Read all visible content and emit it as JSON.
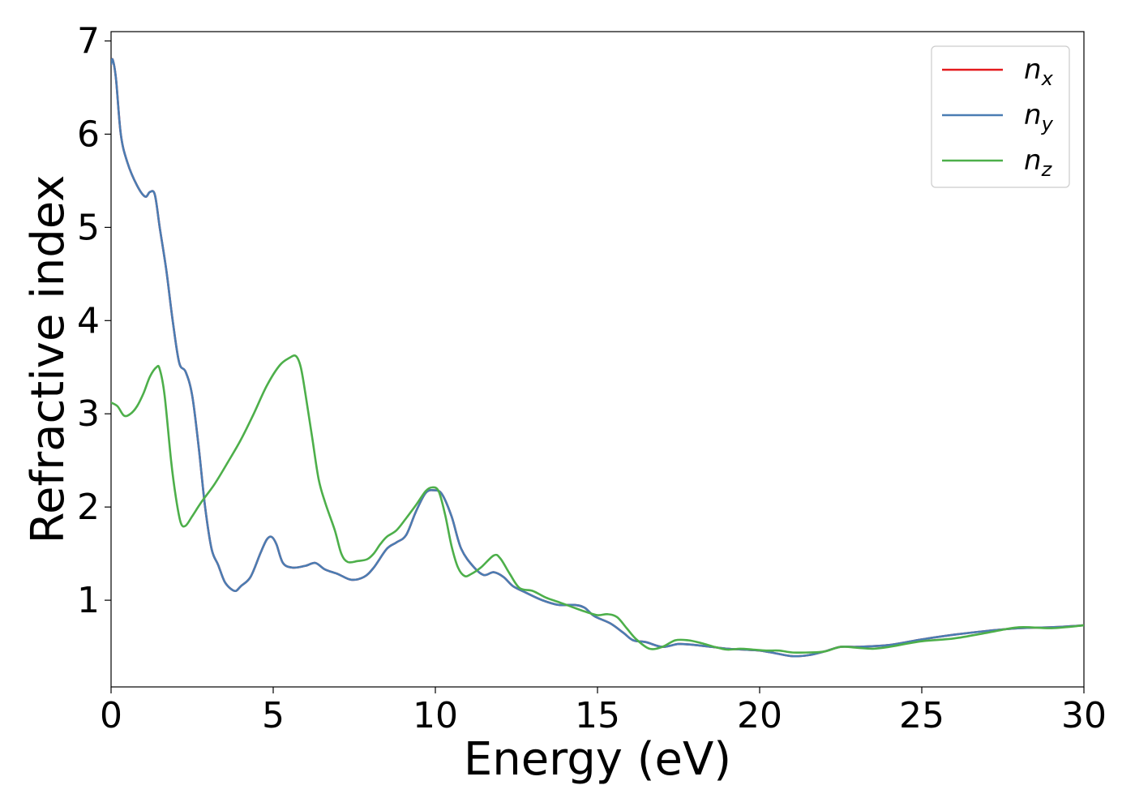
{
  "chart_data": {
    "type": "line",
    "title": "",
    "xlabel": "Energy (eV)",
    "ylabel": "Refractive index",
    "xlim": [
      0,
      30
    ],
    "ylim": [
      0.07,
      7.1
    ],
    "xticks": [
      0,
      5,
      10,
      15,
      20,
      25,
      30
    ],
    "yticks": [
      1,
      2,
      3,
      4,
      5,
      6,
      7
    ],
    "grid": false,
    "legend_position": "top-right",
    "colors": {
      "n_x": "#e41a1c",
      "n_y": "#4a7db3",
      "n_z": "#4daf4a"
    },
    "series": [
      {
        "name": "n_x",
        "legend_base": "n",
        "legend_sub": "x",
        "color": "#e41a1c",
        "x": [
          0,
          0.05,
          0.15,
          0.3,
          0.5,
          0.8,
          1.05,
          1.2,
          1.35,
          1.5,
          1.7,
          1.9,
          2.1,
          2.3,
          2.5,
          2.7,
          2.9,
          3.1,
          3.3,
          3.5,
          3.7,
          3.85,
          4.0,
          4.3,
          4.6,
          4.8,
          4.95,
          5.1,
          5.3,
          5.6,
          6.0,
          6.3,
          6.6,
          7.0,
          7.4,
          7.8,
          8.1,
          8.5,
          8.8,
          9.1,
          9.4,
          9.7,
          9.95,
          10.2,
          10.5,
          10.8,
          11.2,
          11.5,
          11.8,
          12.1,
          12.4,
          12.8,
          13.3,
          13.8,
          14.3,
          14.6,
          14.9,
          15.4,
          15.8,
          16.1,
          16.5,
          17.0,
          17.5,
          18.0,
          18.5,
          19.0,
          19.5,
          20.0,
          20.5,
          21.0,
          21.5,
          22.0,
          22.5,
          23.0,
          24.0,
          25.0,
          26.0,
          27.0,
          28.0,
          29.0,
          30.0
        ],
        "y": [
          6.75,
          6.8,
          6.6,
          6.0,
          5.7,
          5.45,
          5.33,
          5.38,
          5.35,
          5.0,
          4.55,
          4.0,
          3.55,
          3.45,
          3.2,
          2.65,
          2.0,
          1.55,
          1.38,
          1.2,
          1.12,
          1.1,
          1.15,
          1.25,
          1.5,
          1.65,
          1.68,
          1.6,
          1.4,
          1.35,
          1.37,
          1.4,
          1.33,
          1.28,
          1.22,
          1.25,
          1.35,
          1.55,
          1.62,
          1.7,
          1.95,
          2.15,
          2.18,
          2.14,
          1.9,
          1.55,
          1.35,
          1.27,
          1.3,
          1.25,
          1.15,
          1.08,
          1.0,
          0.95,
          0.95,
          0.92,
          0.83,
          0.75,
          0.65,
          0.57,
          0.55,
          0.5,
          0.53,
          0.52,
          0.5,
          0.48,
          0.47,
          0.46,
          0.43,
          0.4,
          0.41,
          0.45,
          0.5,
          0.5,
          0.52,
          0.58,
          0.63,
          0.67,
          0.7,
          0.71,
          0.73
        ]
      },
      {
        "name": "n_y",
        "legend_base": "n",
        "legend_sub": "y",
        "color": "#4a7db3",
        "x": [
          0,
          0.05,
          0.15,
          0.3,
          0.5,
          0.8,
          1.05,
          1.2,
          1.35,
          1.5,
          1.7,
          1.9,
          2.1,
          2.3,
          2.5,
          2.7,
          2.9,
          3.1,
          3.3,
          3.5,
          3.7,
          3.85,
          4.0,
          4.3,
          4.6,
          4.8,
          4.95,
          5.1,
          5.3,
          5.6,
          6.0,
          6.3,
          6.6,
          7.0,
          7.4,
          7.8,
          8.1,
          8.5,
          8.8,
          9.1,
          9.4,
          9.7,
          9.95,
          10.2,
          10.5,
          10.8,
          11.2,
          11.5,
          11.8,
          12.1,
          12.4,
          12.8,
          13.3,
          13.8,
          14.3,
          14.6,
          14.9,
          15.4,
          15.8,
          16.1,
          16.5,
          17.0,
          17.5,
          18.0,
          18.5,
          19.0,
          19.5,
          20.0,
          20.5,
          21.0,
          21.5,
          22.0,
          22.5,
          23.0,
          24.0,
          25.0,
          26.0,
          27.0,
          28.0,
          29.0,
          30.0
        ],
        "y": [
          6.75,
          6.8,
          6.6,
          6.0,
          5.7,
          5.45,
          5.33,
          5.38,
          5.35,
          5.0,
          4.55,
          4.0,
          3.55,
          3.45,
          3.2,
          2.65,
          2.0,
          1.55,
          1.38,
          1.2,
          1.12,
          1.1,
          1.15,
          1.25,
          1.5,
          1.65,
          1.68,
          1.6,
          1.4,
          1.35,
          1.37,
          1.4,
          1.33,
          1.28,
          1.22,
          1.25,
          1.35,
          1.55,
          1.62,
          1.7,
          1.95,
          2.15,
          2.18,
          2.14,
          1.9,
          1.55,
          1.35,
          1.27,
          1.3,
          1.25,
          1.15,
          1.08,
          1.0,
          0.95,
          0.95,
          0.92,
          0.83,
          0.75,
          0.65,
          0.57,
          0.55,
          0.5,
          0.53,
          0.52,
          0.5,
          0.48,
          0.47,
          0.46,
          0.43,
          0.4,
          0.41,
          0.45,
          0.5,
          0.5,
          0.52,
          0.58,
          0.63,
          0.67,
          0.7,
          0.71,
          0.73
        ]
      },
      {
        "name": "n_z",
        "legend_base": "n",
        "legend_sub": "z",
        "color": "#4daf4a",
        "x": [
          0,
          0.2,
          0.4,
          0.6,
          0.8,
          1.0,
          1.2,
          1.4,
          1.5,
          1.65,
          1.85,
          2.0,
          2.15,
          2.3,
          2.5,
          2.8,
          3.2,
          3.6,
          4.0,
          4.4,
          4.8,
          5.2,
          5.5,
          5.7,
          5.85,
          6.0,
          6.2,
          6.4,
          6.6,
          6.9,
          7.1,
          7.3,
          7.6,
          7.9,
          8.1,
          8.3,
          8.5,
          8.8,
          9.1,
          9.4,
          9.7,
          9.9,
          10.1,
          10.3,
          10.5,
          10.7,
          10.9,
          11.1,
          11.4,
          11.8,
          12.0,
          12.3,
          12.6,
          13.0,
          13.4,
          13.8,
          14.2,
          14.6,
          15.0,
          15.3,
          15.6,
          15.9,
          16.2,
          16.6,
          17.0,
          17.4,
          17.8,
          18.2,
          18.6,
          19.0,
          19.4,
          19.8,
          20.2,
          20.6,
          21.0,
          21.5,
          22.0,
          22.5,
          23.0,
          23.5,
          24.0,
          25.0,
          26.0,
          27.0,
          28.0,
          29.0,
          30.0
        ],
        "y": [
          3.12,
          3.08,
          2.98,
          3.0,
          3.08,
          3.22,
          3.4,
          3.5,
          3.48,
          3.2,
          2.5,
          2.1,
          1.83,
          1.8,
          1.9,
          2.06,
          2.25,
          2.48,
          2.72,
          3.0,
          3.3,
          3.52,
          3.6,
          3.62,
          3.5,
          3.2,
          2.75,
          2.3,
          2.05,
          1.75,
          1.5,
          1.41,
          1.42,
          1.44,
          1.5,
          1.6,
          1.68,
          1.75,
          1.88,
          2.02,
          2.17,
          2.21,
          2.17,
          1.92,
          1.58,
          1.35,
          1.26,
          1.28,
          1.35,
          1.48,
          1.45,
          1.28,
          1.13,
          1.1,
          1.03,
          0.98,
          0.93,
          0.88,
          0.84,
          0.85,
          0.82,
          0.7,
          0.58,
          0.48,
          0.5,
          0.57,
          0.57,
          0.54,
          0.5,
          0.47,
          0.48,
          0.47,
          0.46,
          0.46,
          0.44,
          0.44,
          0.45,
          0.5,
          0.49,
          0.48,
          0.5,
          0.56,
          0.59,
          0.65,
          0.71,
          0.7,
          0.73
        ]
      }
    ]
  }
}
